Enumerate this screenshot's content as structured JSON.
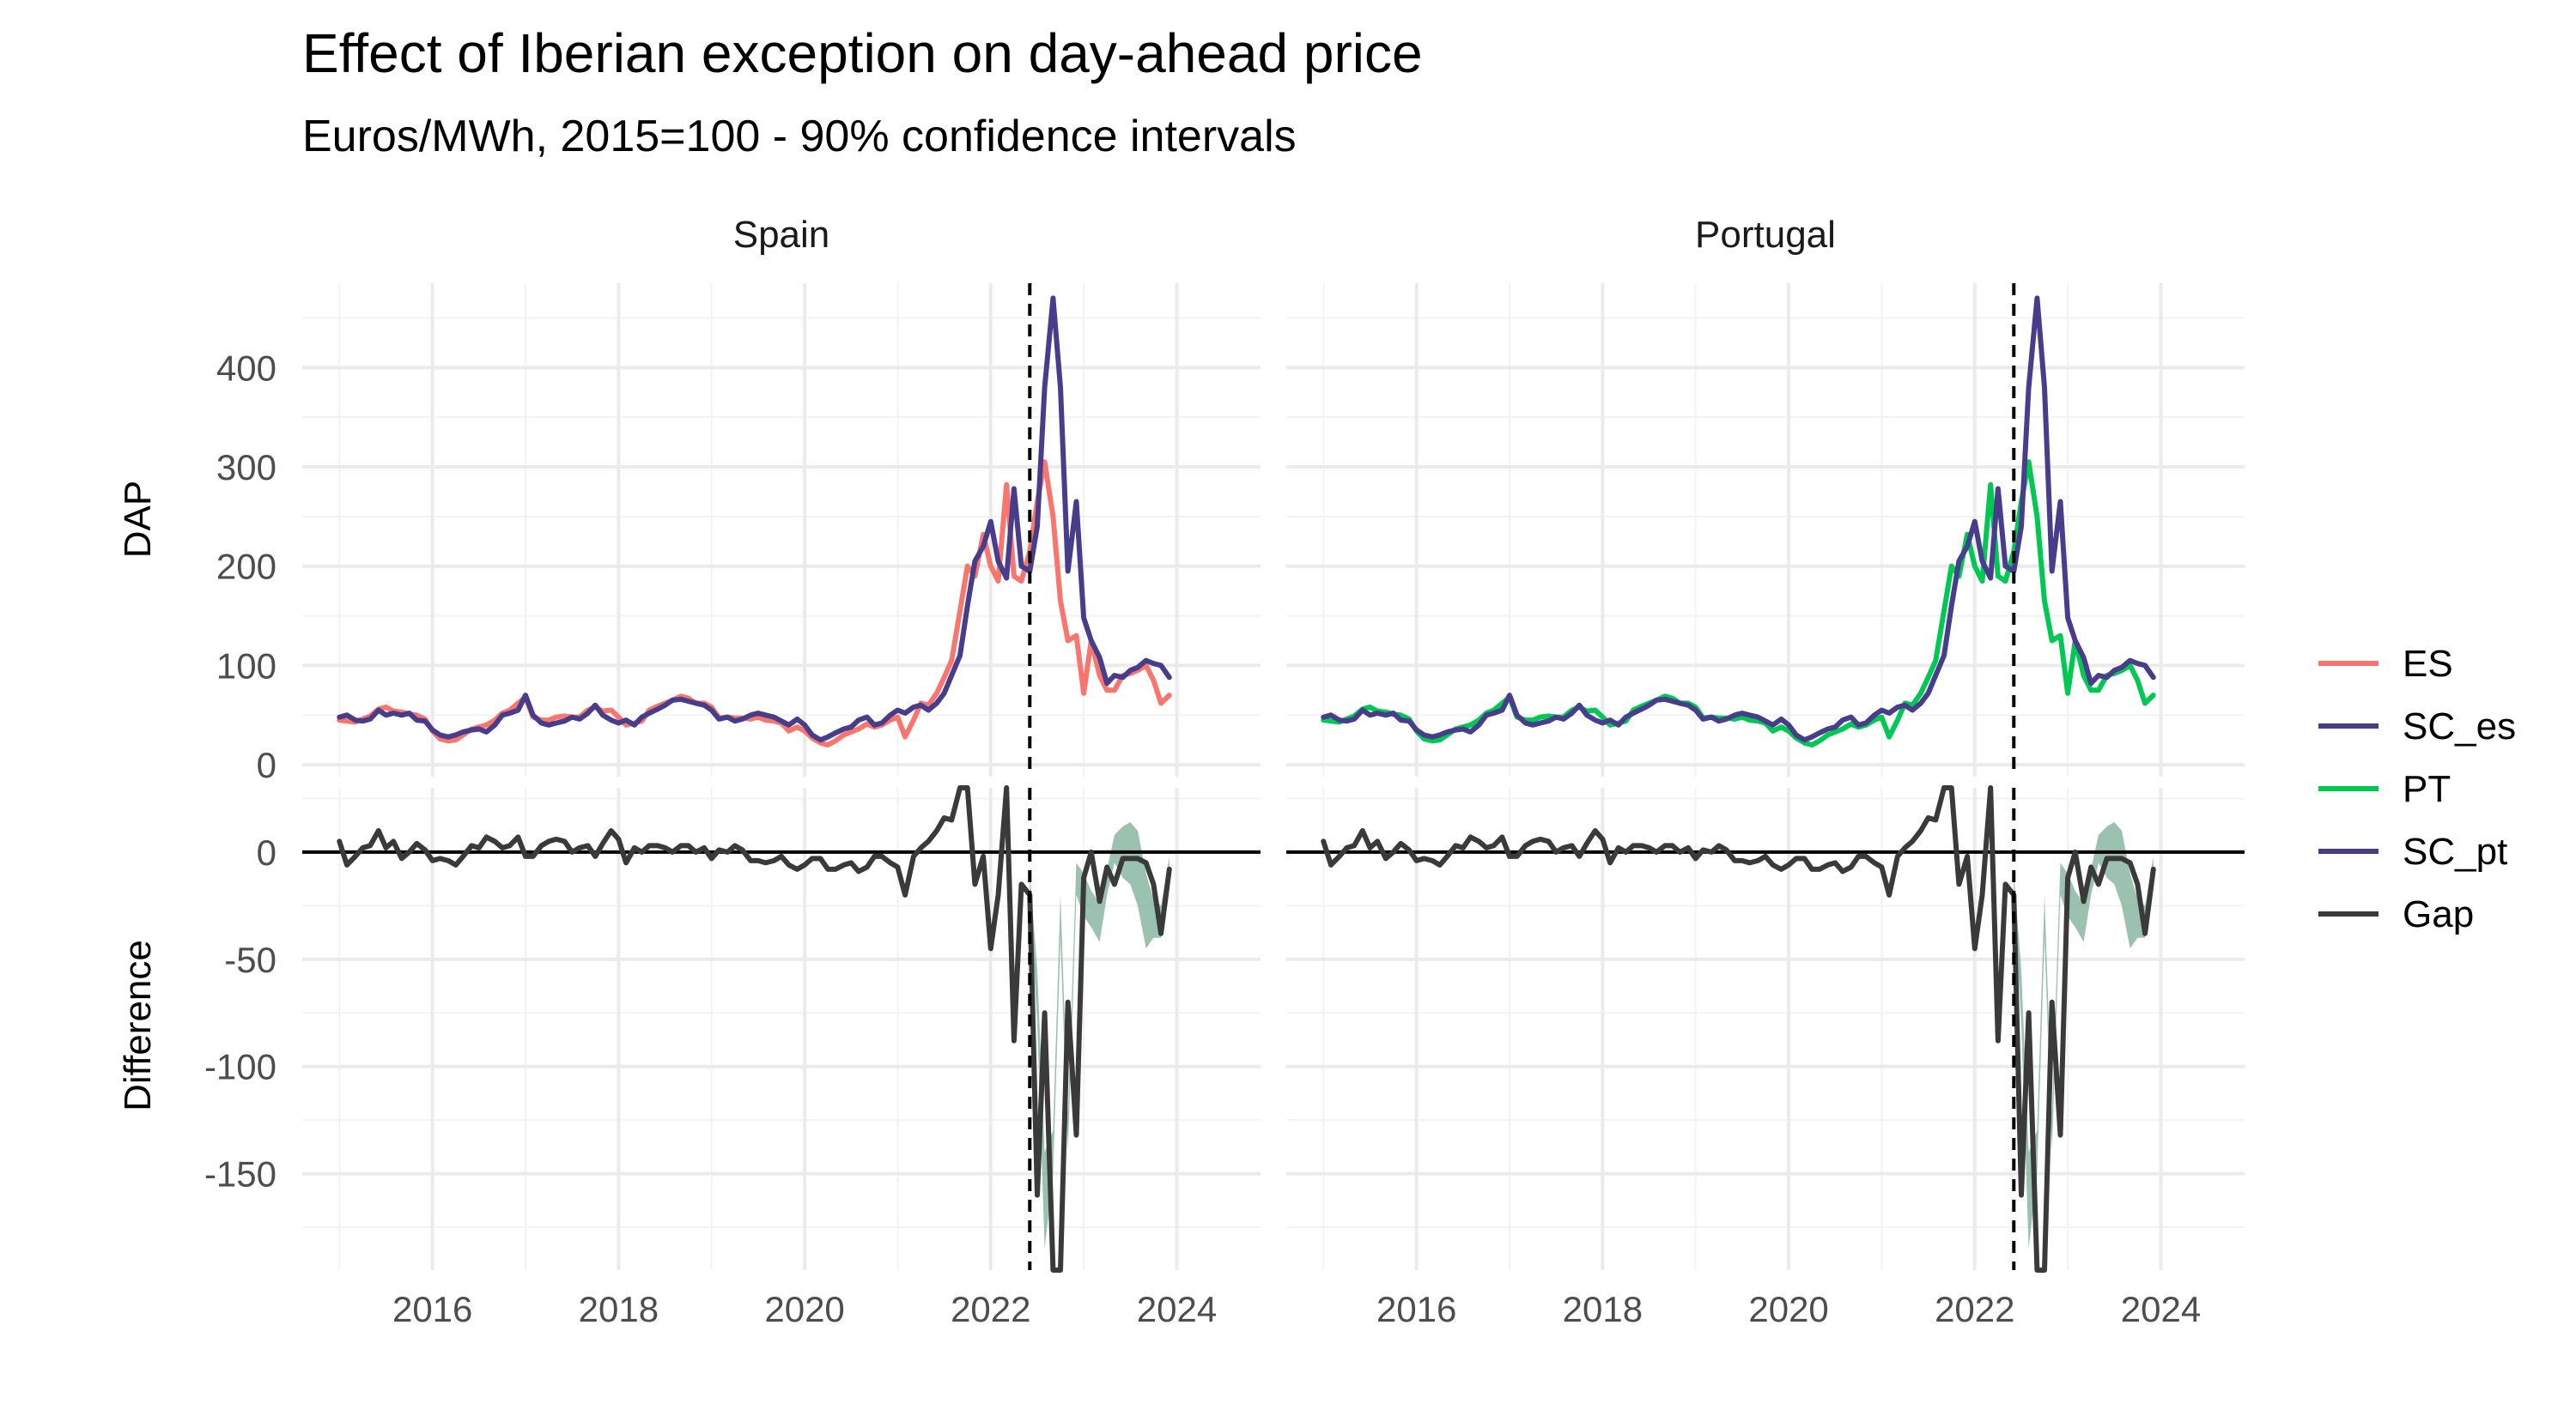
{
  "chart_data": {
    "type": "line",
    "title": "Effect of Iberian exception on day-ahead price",
    "subtitle": "Euros/MWh, 2015=100 - 90% confidence intervals",
    "facets": [
      "Spain",
      "Portugal"
    ],
    "rows": [
      "DAP",
      "Difference"
    ],
    "x_ticks": [
      "2016",
      "2018",
      "2020",
      "2022",
      "2024"
    ],
    "x_range": [
      2014.6,
      2024.9
    ],
    "intervention_x": 2022.42,
    "panels": {
      "DAP": {
        "ylabel": "DAP",
        "ylim": [
          -12,
          485
        ],
        "yticks": [
          0,
          100,
          200,
          300,
          400
        ],
        "ytick_labels": [
          "0",
          "100",
          "200",
          "300",
          "400"
        ]
      },
      "Difference": {
        "ylabel": "Difference",
        "ylim": [
          -195,
          30
        ],
        "yticks": [
          0,
          -50,
          -100,
          -150
        ],
        "ytick_labels": [
          "0",
          "-50",
          "-100",
          "-150"
        ]
      }
    },
    "legend": {
      "position": "right",
      "items": [
        {
          "label": "ES",
          "color": "#F8766D"
        },
        {
          "label": "SC_es",
          "color": "#483D8B"
        },
        {
          "label": "PT",
          "color": "#00C853"
        },
        {
          "label": "SC_pt",
          "color": "#483D8B"
        },
        {
          "label": "Gap",
          "color": "#3a3a3a"
        }
      ]
    },
    "colors": {
      "ES": "#F8766D",
      "PT": "#00C853",
      "SC": "#483D8B",
      "Gap": "#3a3a3a",
      "CI": "#7aae96"
    },
    "x": [
      2015.0,
      2015.08,
      2015.17,
      2015.25,
      2015.33,
      2015.42,
      2015.5,
      2015.58,
      2015.67,
      2015.75,
      2015.83,
      2015.92,
      2016.0,
      2016.08,
      2016.17,
      2016.25,
      2016.33,
      2016.42,
      2016.5,
      2016.58,
      2016.67,
      2016.75,
      2016.83,
      2016.92,
      2017.0,
      2017.08,
      2017.17,
      2017.25,
      2017.33,
      2017.42,
      2017.5,
      2017.58,
      2017.67,
      2017.75,
      2017.83,
      2017.92,
      2018.0,
      2018.08,
      2018.17,
      2018.25,
      2018.33,
      2018.42,
      2018.5,
      2018.58,
      2018.67,
      2018.75,
      2018.83,
      2018.92,
      2019.0,
      2019.08,
      2019.17,
      2019.25,
      2019.33,
      2019.42,
      2019.5,
      2019.58,
      2019.67,
      2019.75,
      2019.83,
      2019.92,
      2020.0,
      2020.08,
      2020.17,
      2020.25,
      2020.33,
      2020.42,
      2020.5,
      2020.58,
      2020.67,
      2020.75,
      2020.83,
      2020.92,
      2021.0,
      2021.08,
      2021.17,
      2021.25,
      2021.33,
      2021.42,
      2021.5,
      2021.58,
      2021.67,
      2021.75,
      2021.83,
      2021.92,
      2022.0,
      2022.08,
      2022.17,
      2022.25,
      2022.33,
      2022.42,
      2022.5,
      2022.58,
      2022.67,
      2022.75,
      2022.83,
      2022.92,
      2023.0,
      2023.08,
      2023.17,
      2023.25,
      2023.33,
      2023.42,
      2023.5,
      2023.58,
      2023.67,
      2023.75,
      2023.83,
      2023.92
    ],
    "series": [
      {
        "name": "ES",
        "facet": "Spain",
        "panel": "DAP",
        "values": [
          45,
          44,
          43,
          46,
          49,
          56,
          58,
          54,
          53,
          51,
          50,
          46,
          34,
          26,
          24,
          25,
          30,
          36,
          38,
          40,
          45,
          52,
          55,
          62,
          68,
          48,
          45,
          45,
          48,
          49,
          48,
          48,
          55,
          58,
          54,
          55,
          48,
          40,
          42,
          44,
          55,
          59,
          62,
          65,
          69,
          67,
          62,
          62,
          58,
          47,
          48,
          47,
          47,
          46,
          48,
          45,
          44,
          42,
          34,
          38,
          34,
          27,
          22,
          20,
          24,
          30,
          33,
          36,
          41,
          38,
          40,
          45,
          48,
          28,
          45,
          62,
          60,
          72,
          88,
          105,
          155,
          200,
          190,
          232,
          200,
          185,
          282,
          190,
          185,
          215,
          265,
          305,
          250,
          165,
          125,
          130,
          72,
          125,
          90,
          75,
          75,
          90,
          92,
          95,
          100,
          85,
          62,
          70
        ]
      },
      {
        "name": "SC_es",
        "facet": "Spain",
        "panel": "DAP",
        "values": [
          48,
          50,
          45,
          44,
          46,
          55,
          50,
          52,
          50,
          52,
          45,
          44,
          35,
          30,
          28,
          30,
          33,
          35,
          36,
          33,
          40,
          50,
          52,
          55,
          70,
          50,
          42,
          40,
          42,
          44,
          48,
          46,
          52,
          60,
          50,
          45,
          42,
          45,
          40,
          48,
          52,
          56,
          60,
          65,
          66,
          64,
          62,
          60,
          55,
          46,
          48,
          44,
          46,
          50,
          52,
          50,
          48,
          44,
          40,
          46,
          40,
          30,
          25,
          28,
          32,
          36,
          38,
          45,
          48,
          40,
          42,
          50,
          55,
          52,
          58,
          60,
          55,
          62,
          72,
          90,
          110,
          160,
          205,
          220,
          245,
          205,
          188,
          278,
          200,
          195,
          240,
          380,
          470,
          380,
          195,
          265,
          148,
          125,
          108,
          82,
          90,
          88,
          95,
          98,
          105,
          102,
          100,
          88
        ]
      },
      {
        "name": "PT",
        "facet": "Portugal",
        "panel": "DAP",
        "values": [
          45,
          44,
          43,
          46,
          49,
          56,
          58,
          54,
          53,
          51,
          50,
          46,
          34,
          26,
          24,
          25,
          30,
          36,
          38,
          40,
          45,
          52,
          55,
          62,
          68,
          48,
          45,
          45,
          48,
          49,
          48,
          48,
          55,
          58,
          54,
          55,
          48,
          40,
          42,
          44,
          55,
          59,
          62,
          65,
          69,
          67,
          62,
          62,
          58,
          47,
          48,
          47,
          47,
          46,
          48,
          45,
          44,
          42,
          34,
          38,
          34,
          27,
          22,
          20,
          24,
          30,
          33,
          36,
          41,
          38,
          40,
          45,
          48,
          28,
          45,
          62,
          60,
          72,
          88,
          105,
          155,
          200,
          190,
          232,
          200,
          185,
          282,
          190,
          185,
          215,
          265,
          305,
          250,
          165,
          125,
          130,
          72,
          125,
          90,
          75,
          75,
          90,
          92,
          95,
          100,
          85,
          62,
          70
        ]
      },
      {
        "name": "SC_pt",
        "facet": "Portugal",
        "panel": "DAP",
        "values": [
          48,
          50,
          45,
          44,
          46,
          55,
          50,
          52,
          50,
          52,
          45,
          44,
          35,
          30,
          28,
          30,
          33,
          35,
          36,
          33,
          40,
          50,
          52,
          55,
          70,
          50,
          42,
          40,
          42,
          44,
          48,
          46,
          52,
          60,
          50,
          45,
          42,
          45,
          40,
          48,
          52,
          56,
          60,
          65,
          66,
          64,
          62,
          60,
          55,
          46,
          48,
          44,
          46,
          50,
          52,
          50,
          48,
          44,
          40,
          46,
          40,
          30,
          25,
          28,
          32,
          36,
          38,
          45,
          48,
          40,
          42,
          50,
          55,
          52,
          58,
          60,
          55,
          62,
          72,
          90,
          110,
          160,
          205,
          220,
          245,
          205,
          188,
          278,
          200,
          195,
          240,
          380,
          470,
          380,
          195,
          265,
          148,
          125,
          108,
          82,
          90,
          88,
          95,
          98,
          105,
          102,
          100,
          88
        ]
      },
      {
        "name": "Gap",
        "facet": "Spain",
        "panel": "Difference",
        "values": [
          5,
          -6,
          -2,
          2,
          3,
          10,
          2,
          5,
          -3,
          0,
          4,
          1,
          -4,
          -3,
          -4,
          -6,
          -2,
          3,
          2,
          7,
          5,
          2,
          3,
          7,
          -2,
          -2,
          3,
          5,
          6,
          5,
          0,
          2,
          3,
          -2,
          4,
          10,
          6,
          -5,
          2,
          0,
          3,
          3,
          2,
          0,
          3,
          3,
          0,
          2,
          -3,
          1,
          0,
          3,
          1,
          -4,
          -4,
          -5,
          -4,
          -2,
          -6,
          -8,
          -6,
          -3,
          -3,
          -8,
          -8,
          -6,
          -5,
          -9,
          -7,
          -2,
          -2,
          -5,
          -7,
          -20,
          -2,
          2,
          5,
          10,
          16,
          15,
          45,
          40,
          -15,
          -2,
          -45,
          -20,
          94,
          -88,
          -15,
          -20,
          -160,
          -75,
          -220,
          -215,
          -70,
          -132,
          -12,
          0,
          -23,
          -7,
          -15,
          -3,
          -3,
          -3,
          -5,
          -15,
          -38,
          -8
        ]
      },
      {
        "name": "Gap",
        "facet": "Portugal",
        "panel": "Difference",
        "values": [
          5,
          -6,
          -2,
          2,
          3,
          10,
          2,
          5,
          -3,
          0,
          4,
          1,
          -4,
          -3,
          -4,
          -6,
          -2,
          3,
          2,
          7,
          5,
          2,
          3,
          7,
          -2,
          -2,
          3,
          5,
          6,
          5,
          0,
          2,
          3,
          -2,
          4,
          10,
          6,
          -5,
          2,
          0,
          3,
          3,
          2,
          0,
          3,
          3,
          0,
          2,
          -3,
          1,
          0,
          3,
          1,
          -4,
          -4,
          -5,
          -4,
          -2,
          -6,
          -8,
          -6,
          -3,
          -3,
          -8,
          -8,
          -6,
          -5,
          -9,
          -7,
          -2,
          -2,
          -5,
          -7,
          -20,
          -2,
          2,
          5,
          10,
          16,
          15,
          45,
          40,
          -15,
          -2,
          -45,
          -20,
          94,
          -88,
          -15,
          -20,
          -160,
          -75,
          -220,
          -215,
          -70,
          -132,
          -12,
          0,
          -23,
          -7,
          -15,
          -3,
          -3,
          -3,
          -5,
          -15,
          -38,
          -8
        ]
      }
    ],
    "ci_band": {
      "x": [
        2022.42,
        2022.5,
        2022.58,
        2022.67,
        2022.75,
        2022.83,
        2022.92,
        2023.0,
        2023.08,
        2023.17,
        2023.25,
        2023.33,
        2023.42,
        2023.5,
        2023.58,
        2023.67,
        2023.75,
        2023.83,
        2023.92
      ],
      "lower": [
        -20,
        -80,
        -185,
        -150,
        -40,
        -140,
        -20,
        -30,
        -35,
        -42,
        -20,
        -5,
        -12,
        -15,
        -25,
        -45,
        -40,
        -40,
        -15
      ],
      "upper": [
        -10,
        -55,
        -140,
        -130,
        -20,
        -122,
        -5,
        -10,
        -18,
        -24,
        -8,
        8,
        12,
        14,
        10,
        -10,
        -22,
        -25,
        -2
      ]
    }
  }
}
